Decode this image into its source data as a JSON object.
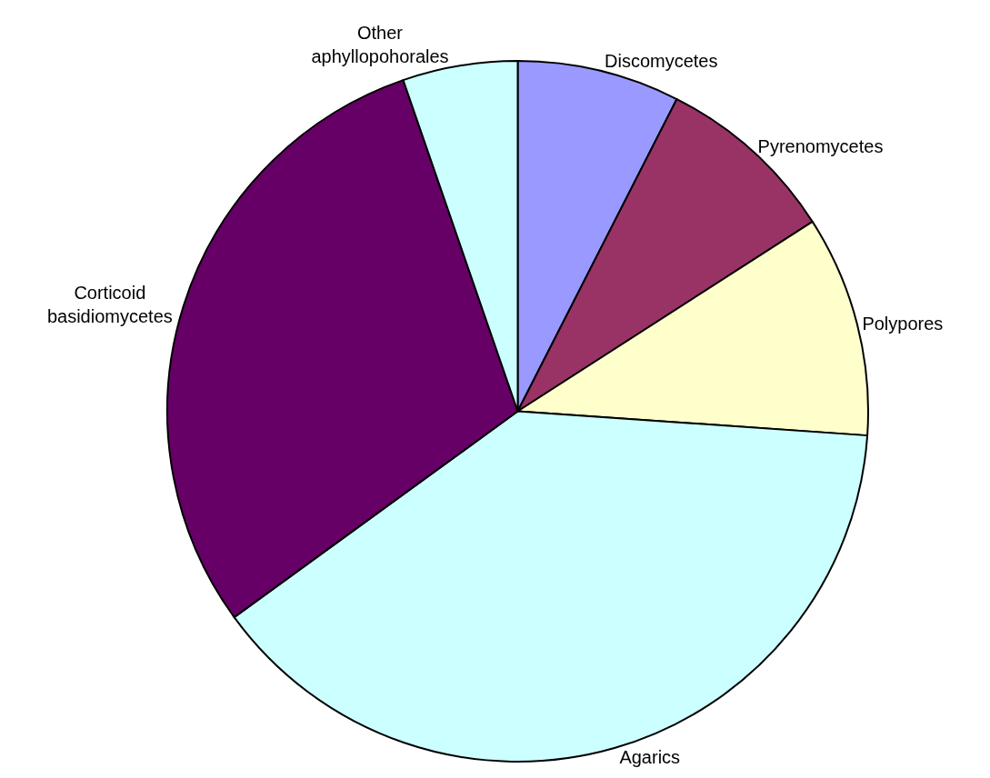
{
  "chart_data": {
    "type": "pie",
    "categories": [
      "Discomycetes",
      "Pyrenomycetes",
      "Polypores",
      "Agarics",
      "Corticoid\nbasidiomycetes",
      "Other\naphyllopohorales"
    ],
    "values": [
      7.5,
      8.4,
      10.2,
      38.9,
      29.7,
      5.3
    ],
    "colors": [
      "#9999ff",
      "#993366",
      "#ffffcc",
      "#ccffff",
      "#660066",
      "#ccffff"
    ],
    "legend": false
  }
}
